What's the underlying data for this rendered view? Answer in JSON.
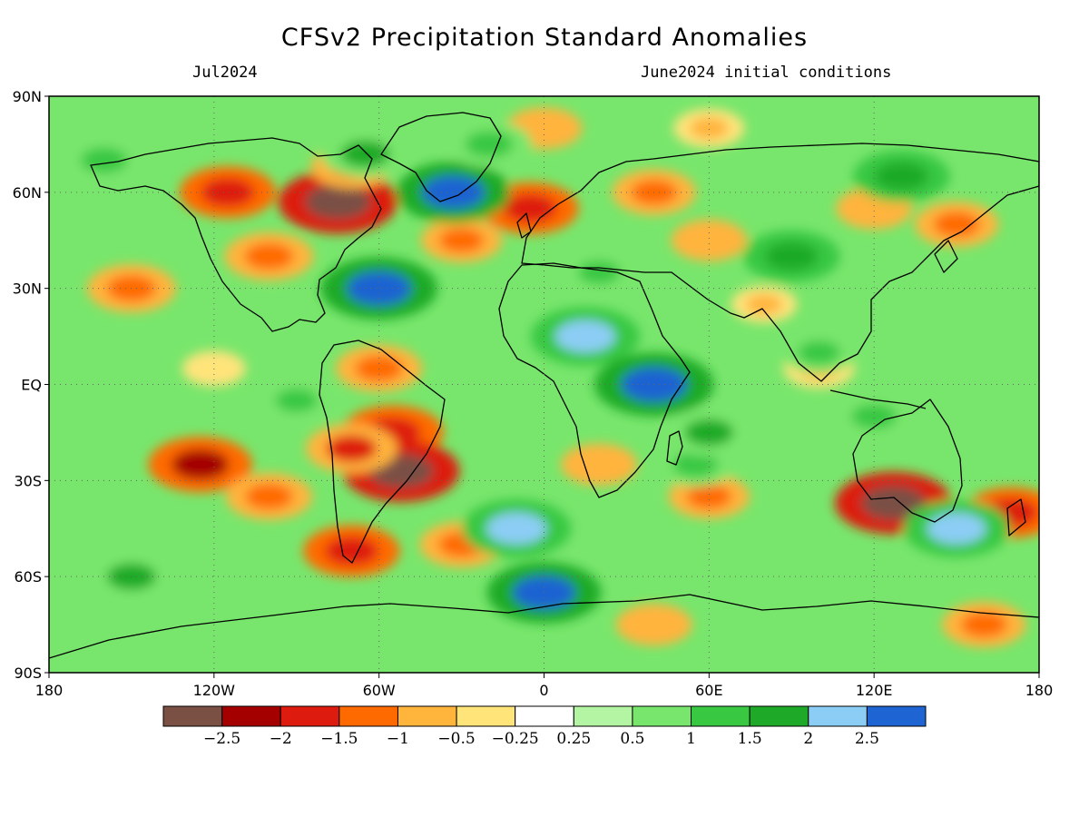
{
  "title": "CFSv2 Precipitation Standard Anomalies",
  "subtitle_left": "Jul2024",
  "subtitle_right": "June2024 initial conditions",
  "map": {
    "lon_range": [
      -180,
      180
    ],
    "lat_range": [
      -90,
      90
    ],
    "x_ticks": [
      {
        "lon": -180,
        "label": "180"
      },
      {
        "lon": -120,
        "label": "120W"
      },
      {
        "lon": -60,
        "label": "60W"
      },
      {
        "lon": 0,
        "label": "0"
      },
      {
        "lon": 60,
        "label": "60E"
      },
      {
        "lon": 120,
        "label": "120E"
      },
      {
        "lon": 180,
        "label": "180"
      }
    ],
    "y_ticks": [
      {
        "lat": 90,
        "label": "90N"
      },
      {
        "lat": 60,
        "label": "60N"
      },
      {
        "lat": 30,
        "label": "30N"
      },
      {
        "lat": 0,
        "label": "EQ"
      },
      {
        "lat": -30,
        "label": "30S"
      },
      {
        "lat": -60,
        "label": "60S"
      },
      {
        "lat": -90,
        "label": "90S"
      }
    ],
    "grid": "dotted"
  },
  "colorbar": {
    "colors": [
      "#7a4f44",
      "#a40000",
      "#dd1b0e",
      "#ff6a00",
      "#ffb43c",
      "#ffe47a",
      "#ffffff",
      "#b4f5a4",
      "#78e66c",
      "#39c842",
      "#1eaa28",
      "#8ccdf5",
      "#1e64d2"
    ],
    "labels": [
      "−2.5",
      "−2",
      "−1.5",
      "−1",
      "−0.5",
      "−0.25",
      "0.25",
      "0.5",
      "1",
      "1.5",
      "2",
      "2.5"
    ]
  },
  "anomaly_blobs": [
    {
      "lon": -150,
      "lat": 30,
      "value": -1.5
    },
    {
      "lon": -115,
      "lat": 60,
      "value": -1.8
    },
    {
      "lon": -75,
      "lat": 57,
      "value": -2.7
    },
    {
      "lon": -70,
      "lat": 68,
      "value": -1.2
    },
    {
      "lon": -100,
      "lat": 40,
      "value": -1.5
    },
    {
      "lon": -30,
      "lat": 45,
      "value": -1.2
    },
    {
      "lon": -5,
      "lat": 55,
      "value": -1.8
    },
    {
      "lon": 0,
      "lat": 80,
      "value": -1.0
    },
    {
      "lon": 60,
      "lat": 80,
      "value": -0.8
    },
    {
      "lon": 40,
      "lat": 60,
      "value": -1.3
    },
    {
      "lon": 60,
      "lat": 45,
      "value": -1.0
    },
    {
      "lon": 120,
      "lat": 55,
      "value": -1.0
    },
    {
      "lon": 150,
      "lat": 50,
      "value": -1.3
    },
    {
      "lon": -60,
      "lat": 5,
      "value": -1.4
    },
    {
      "lon": -55,
      "lat": -15,
      "value": -2.0
    },
    {
      "lon": -52,
      "lat": -27,
      "value": -2.6
    },
    {
      "lon": -70,
      "lat": -20,
      "value": -1.6
    },
    {
      "lon": -125,
      "lat": -25,
      "value": -2.1
    },
    {
      "lon": -100,
      "lat": -35,
      "value": -1.4
    },
    {
      "lon": -70,
      "lat": -52,
      "value": -1.8
    },
    {
      "lon": -30,
      "lat": -50,
      "value": -1.3
    },
    {
      "lon": 20,
      "lat": -25,
      "value": -1.0
    },
    {
      "lon": 60,
      "lat": -35,
      "value": -1.2
    },
    {
      "lon": 127,
      "lat": -37,
      "value": -2.6
    },
    {
      "lon": 170,
      "lat": -40,
      "value": -1.7
    },
    {
      "lon": 100,
      "lat": 5,
      "value": -0.8
    },
    {
      "lon": 40,
      "lat": -75,
      "value": -1.0
    },
    {
      "lon": 160,
      "lat": -75,
      "value": -1.3
    },
    {
      "lon": -120,
      "lat": 5,
      "value": -0.5
    },
    {
      "lon": 80,
      "lat": 25,
      "value": -0.6
    },
    {
      "lon": -60,
      "lat": 30,
      "value": 2.6
    },
    {
      "lon": -33,
      "lat": 60,
      "value": 2.5
    },
    {
      "lon": -65,
      "lat": 72,
      "value": 1.5
    },
    {
      "lon": 15,
      "lat": 15,
      "value": 2.3
    },
    {
      "lon": 40,
      "lat": 0,
      "value": 2.7
    },
    {
      "lon": 55,
      "lat": -25,
      "value": 1.2
    },
    {
      "lon": -10,
      "lat": -45,
      "value": 2.3
    },
    {
      "lon": 0,
      "lat": -65,
      "value": 2.5
    },
    {
      "lon": 90,
      "lat": 40,
      "value": 1.8
    },
    {
      "lon": 130,
      "lat": 65,
      "value": 1.8
    },
    {
      "lon": 100,
      "lat": 10,
      "value": 1.0
    },
    {
      "lon": 60,
      "lat": -15,
      "value": 1.5
    },
    {
      "lon": -150,
      "lat": -60,
      "value": 1.5
    },
    {
      "lon": 150,
      "lat": -45,
      "value": 2.2
    },
    {
      "lon": 20,
      "lat": 35,
      "value": 1.0
    },
    {
      "lon": -20,
      "lat": 75,
      "value": 1.4
    },
    {
      "lon": -160,
      "lat": 70,
      "value": 1.3
    },
    {
      "lon": -90,
      "lat": -5,
      "value": 1.0
    },
    {
      "lon": 120,
      "lat": -10,
      "value": 1.2
    }
  ]
}
